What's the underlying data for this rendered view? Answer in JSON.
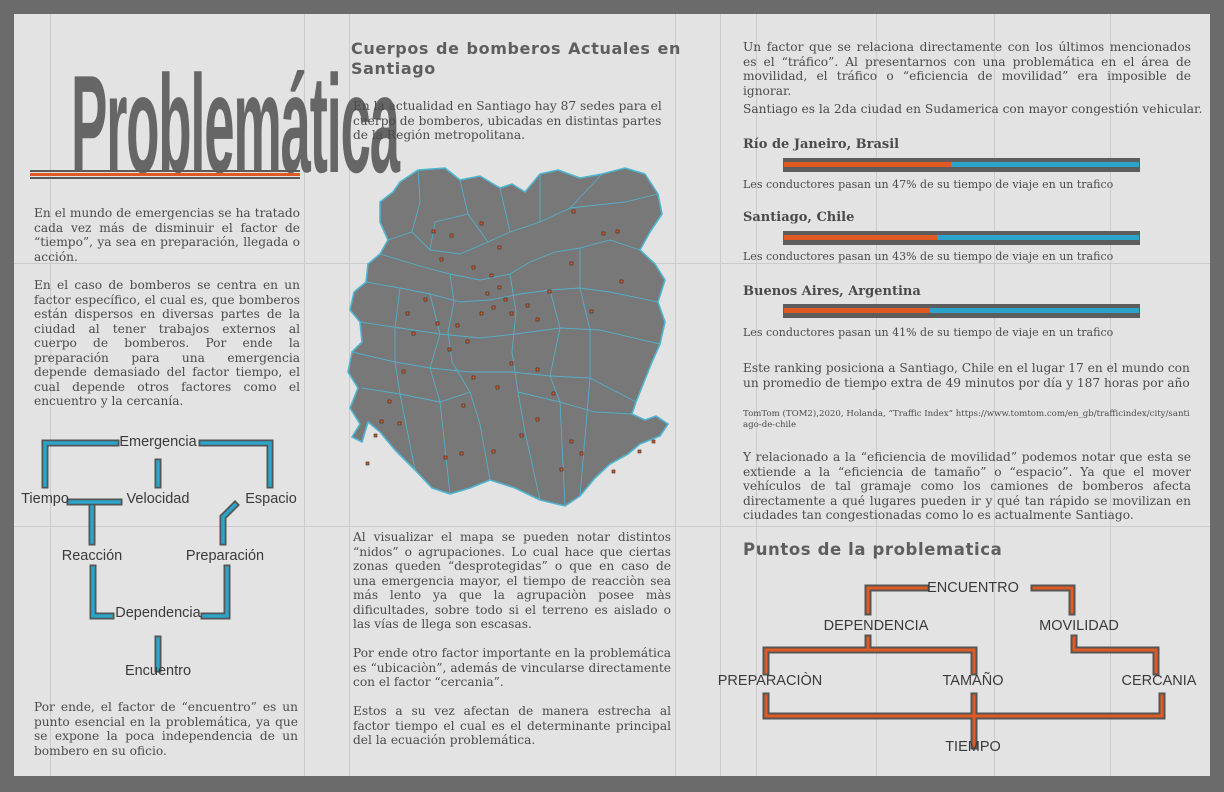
{
  "title": "Problemática",
  "left": {
    "p1": "En el mundo de emergencias se ha tratado cada vez más de disminuir el factor de “tiempo”,  ya sea en preparación, llegada o acción.",
    "p2": "En el caso de bomberos se centra en un factor específico, el cual es, que bomberos están dispersos en diversas partes de la ciudad al tener trabajos externos al cuerpo de bomberos. Por ende la preparación para una emergencia depende demasiado del factor tiempo, el cual depende otros factores como el encuentro y la cercanía.",
    "diagram": {
      "emergencia": "Emergencia",
      "tiempo": "Tiempo",
      "velocidad": "Velocidad",
      "espacio": "Espacio",
      "reaccion": "Reacción",
      "preparacion": "Preparación",
      "dependencia": "Dependencia",
      "encuentro": "Encuentro"
    },
    "p3": "Por ende, el factor de “encuentro” es un punto esencial en la problemática, ya que se expone la poca independencia de un bombero en su oficio."
  },
  "middle": {
    "heading": "Cuerpos de bomberos Actuales en Santiago",
    "p1": "En la actualidad en Santiago hay 87 sedes para el cuerpo de bomberos, ubicadas en distintas partes de la Región metropolitana.",
    "p2": "Al visualizar el mapa se pueden notar distintos “nidos” o agrupaciones. Lo cual hace que ciertas zonas queden “desprotegidas” o que en caso de una emergencia mayor, el tiempo de reacciòn sea más lento ya que la agrupaciòn posee màs dificultades, sobre todo si el terreno es aislado o las vías de llega son escasas.",
    "p3": "Por ende otro factor importante en la problemática es “ubicaciòn”, además de vincularse directamente con el factor “cercania”.",
    "p4": "Estos a su vez afectan de manera estrecha al factor tiempo el cual es el determinante principal del la ecuación problemática."
  },
  "right": {
    "p1": "Un factor que se relaciona directamente con los últimos mencionados es el “tráfico”. Al presentarnos con una problemática en el área de movilidad, el tráfico o “eficiencia de movilidad” era imposible de ignorar.",
    "p2": "Santiago es la 2da ciudad en Sudamerica con mayor congestión vehicular.",
    "cities": [
      {
        "name": "Río de Janeiro, Brasil",
        "caption": "Les conductores pasan un 47% de su tiempo de viaje en un trafico",
        "pct": 47
      },
      {
        "name": "Santiago, Chile",
        "caption": "Les conductores pasan un 43% de su tiempo de viaje en un trafico",
        "pct": 43
      },
      {
        "name": "Buenos Aires, Argentina",
        "caption": "Les conductores pasan un 41% de su tiempo de viaje en un trafico",
        "pct": 41
      }
    ],
    "p3": "Este ranking posiciona a Santiago, Chile en el lugar 17 en el mundo con un promedio de tiempo extra de 49 minutos por día y 187 horas por año",
    "source": "TomTom (TOM2),2020, Holanda, “Traffic Index” https://www.tomtom.com/en_gb/trafficindex/city/santiago-de-chile",
    "p4": "Y relacionado a la “eficiencia de movilidad” podemos notar que esta se extiende a la “eficiencia de tamaño” o “espacio”. Ya que el mover vehículos de tal gramaje como los camiones de bomberos afecta directamente a qué lugares pueden ir y qué tan rápido se movilizan en ciudades tan congestionadas como lo es actualmente Santiago.",
    "heading2": "Puntos de la problematica",
    "diagram2": {
      "encuentro": "ENCUENTRO",
      "dependencia": "DEPENDENCIA",
      "movilidad": "MOVILIDAD",
      "preparacion": "PREPARACIÒN",
      "tamano": "TAMAÑO",
      "cercania": "CERCANIA",
      "tiempo": "TIEMPO"
    }
  },
  "colors": {
    "orange": "#e05a22",
    "blue": "#2aa4c8",
    "gray": "#5d5d5d",
    "map_fill": "#787878",
    "map_edge": "#4fb6d2"
  }
}
